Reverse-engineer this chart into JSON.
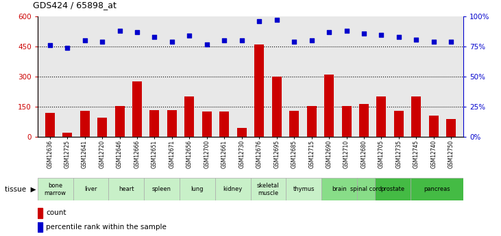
{
  "title": "GDS424 / 65898_at",
  "samples": [
    "GSM12636",
    "GSM12725",
    "GSM12641",
    "GSM12720",
    "GSM12646",
    "GSM12666",
    "GSM12651",
    "GSM12671",
    "GSM12656",
    "GSM12700",
    "GSM12661",
    "GSM12730",
    "GSM12676",
    "GSM12695",
    "GSM12685",
    "GSM12715",
    "GSM12690",
    "GSM12710",
    "GSM12680",
    "GSM12705",
    "GSM12735",
    "GSM12745",
    "GSM12740",
    "GSM12750"
  ],
  "count_values": [
    120,
    20,
    130,
    95,
    155,
    275,
    135,
    135,
    200,
    125,
    125,
    45,
    460,
    300,
    130,
    155,
    310,
    155,
    165,
    200,
    130,
    200,
    105,
    90
  ],
  "percentile_values": [
    76,
    74,
    80,
    79,
    88,
    87,
    83,
    79,
    84,
    77,
    80,
    80,
    96,
    97,
    79,
    80,
    87,
    88,
    86,
    85,
    83,
    81,
    79,
    79
  ],
  "tissue_groups": [
    {
      "name": "bone\nmarrow",
      "start": 0,
      "end": 2,
      "color": "#c8f0c8"
    },
    {
      "name": "liver",
      "start": 2,
      "end": 4,
      "color": "#c8f0c8"
    },
    {
      "name": "heart",
      "start": 4,
      "end": 6,
      "color": "#c8f0c8"
    },
    {
      "name": "spleen",
      "start": 6,
      "end": 8,
      "color": "#c8f0c8"
    },
    {
      "name": "lung",
      "start": 8,
      "end": 10,
      "color": "#c8f0c8"
    },
    {
      "name": "kidney",
      "start": 10,
      "end": 12,
      "color": "#c8f0c8"
    },
    {
      "name": "skeletal\nmuscle",
      "start": 12,
      "end": 14,
      "color": "#c8f0c8"
    },
    {
      "name": "thymus",
      "start": 14,
      "end": 16,
      "color": "#c8f0c8"
    },
    {
      "name": "brain",
      "start": 16,
      "end": 18,
      "color": "#88dd88"
    },
    {
      "name": "spinal cord",
      "start": 18,
      "end": 19,
      "color": "#88dd88"
    },
    {
      "name": "prostate",
      "start": 19,
      "end": 21,
      "color": "#44bb44"
    },
    {
      "name": "pancreas",
      "start": 21,
      "end": 24,
      "color": "#44bb44"
    }
  ],
  "bar_color": "#cc0000",
  "dot_color": "#0000cc",
  "ylim_left": [
    0,
    600
  ],
  "ylim_right": [
    0,
    100
  ],
  "yticks_left": [
    0,
    150,
    300,
    450,
    600
  ],
  "yticks_right": [
    0,
    25,
    50,
    75,
    100
  ],
  "ytick_labels_left": [
    "0",
    "150",
    "300",
    "450",
    "600"
  ],
  "ytick_labels_right": [
    "0%",
    "25%",
    "50%",
    "75%",
    "100%"
  ],
  "hlines": [
    150,
    300,
    450
  ],
  "legend_count_label": "count",
  "legend_pct_label": "percentile rank within the sample",
  "bg_color": "#e8e8e8"
}
